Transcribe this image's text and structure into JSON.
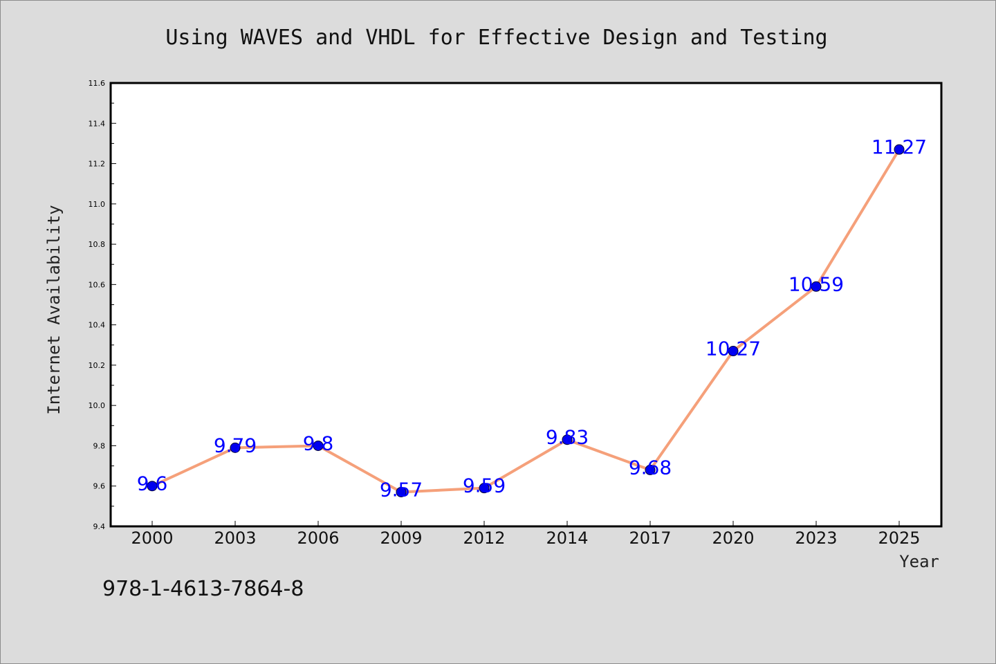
{
  "chart_data": {
    "type": "line",
    "title": "Using WAVES and VHDL for Effective Design and Testing",
    "xlabel": "Year",
    "ylabel": "Internet Availability",
    "categories": [
      "2000",
      "2003",
      "2006",
      "2009",
      "2012",
      "2014",
      "2017",
      "2020",
      "2023",
      "2025"
    ],
    "values": [
      9.6,
      9.79,
      9.8,
      9.57,
      9.59,
      9.83,
      9.68,
      10.27,
      10.59,
      11.27
    ],
    "data_labels": [
      "9.6",
      "9.79",
      "9.8",
      "9.57",
      "9.59",
      "9.83",
      "9.68",
      "10.27",
      "10.59",
      "11.27"
    ],
    "ylim": [
      9.4,
      11.6
    ],
    "yticks": [
      "9.4",
      "9.6",
      "9.8",
      "10.0",
      "10.2",
      "10.4",
      "10.6",
      "10.8",
      "11.0",
      "11.2",
      "11.4",
      "11.6"
    ],
    "grid": false,
    "legend": "none",
    "line_color": "#f5a07a",
    "marker_color": "#0000ee",
    "label_color": "#0000ff"
  },
  "footer": {
    "isbn": "978-1-4613-7864-8"
  }
}
